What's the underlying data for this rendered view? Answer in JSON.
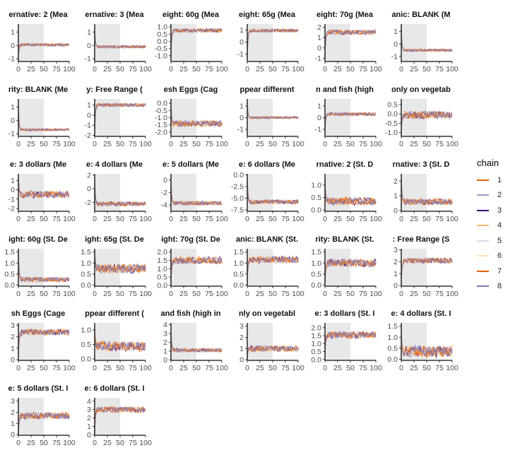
{
  "chart_data": {
    "type": "line",
    "layout": "facet-grid",
    "x_ticks": [
      0,
      25,
      50,
      75,
      100
    ],
    "x_tick_labels": [
      "0",
      "25",
      "50",
      "75",
      "100"
    ],
    "xlim": [
      0,
      100
    ],
    "burnin_shade": [
      0,
      50
    ],
    "legend": {
      "title": "chain",
      "position": "right",
      "entries": [
        "1",
        "2",
        "3",
        "4",
        "5",
        "6",
        "7",
        "8"
      ]
    },
    "series_colors": [
      "#e66101",
      "#9e9ac8",
      "#3f007d",
      "#fdb863",
      "#dadaeb",
      "#fee0b6",
      "#e66101",
      "#8073ac"
    ],
    "panels": [
      {
        "title": "ernative: 2 (Mea",
        "ylim": [
          -1.2,
          1.6
        ],
        "y_ticks": [
          -1,
          0,
          1
        ],
        "y_tick_labels": [
          "-1",
          "0",
          "1"
        ],
        "level": 0.05,
        "noise": 0.12,
        "start": -1.0
      },
      {
        "title": "ernative: 3 (Mea",
        "ylim": [
          -1.2,
          1.6
        ],
        "y_ticks": [
          -1,
          0,
          1
        ],
        "y_tick_labels": [
          "-1",
          "0",
          "1"
        ],
        "level": -0.1,
        "noise": 0.12,
        "start": 1.4
      },
      {
        "title": "eight: 60g (Mea",
        "ylim": [
          -1.4,
          1.2
        ],
        "y_ticks": [
          -1.0,
          -0.5,
          0.0,
          0.5,
          1.0
        ],
        "y_tick_labels": [
          "-1.0",
          "-0.5",
          "0.0",
          "0.5",
          "1.0"
        ],
        "level": 0.75,
        "noise": 0.15,
        "start": -1.2
      },
      {
        "title": "eight: 65g (Mea",
        "ylim": [
          -1.6,
          1.5
        ],
        "y_ticks": [
          -1,
          0,
          1
        ],
        "y_tick_labels": [
          "-1",
          "0",
          "1"
        ],
        "level": 0.95,
        "noise": 0.15,
        "start": -1.3
      },
      {
        "title": "eight: 70g (Mea",
        "ylim": [
          -1.3,
          2.3
        ],
        "y_ticks": [
          -1,
          0,
          1,
          2
        ],
        "y_tick_labels": [
          "-1",
          "0",
          "1",
          "2"
        ],
        "level": 1.5,
        "noise": 0.25,
        "start": -1.0
      },
      {
        "title": "anic: BLANK (M",
        "ylim": [
          -1.4,
          1.6
        ],
        "y_ticks": [
          -1,
          0,
          1
        ],
        "y_tick_labels": [
          "-1",
          "0",
          "1"
        ],
        "level": -0.5,
        "noise": 0.12,
        "start": 1.4
      },
      {
        "title": "rity: BLANK (Me",
        "ylim": [
          -1.2,
          1.6
        ],
        "y_ticks": [
          -1,
          0,
          1
        ],
        "y_tick_labels": [
          "-1",
          "0",
          "1"
        ],
        "level": -0.7,
        "noise": 0.1,
        "start": 1.3
      },
      {
        "title": "y: Free Range (",
        "ylim": [
          -2.1,
          1.6
        ],
        "y_ticks": [
          -2,
          -1,
          0,
          1
        ],
        "y_tick_labels": [
          "-2",
          "-1",
          "0",
          "1"
        ],
        "level": 1.0,
        "noise": 0.18,
        "start": -2.0
      },
      {
        "title": "esh Eggs (Cag",
        "ylim": [
          -2.3,
          0.3
        ],
        "y_ticks": [
          -2.0,
          -1.5,
          -1.0,
          -0.5,
          0.0
        ],
        "y_tick_labels": [
          "-2.0",
          "-1.5",
          "-1.0",
          "-0.5",
          "0.0"
        ],
        "level": -1.4,
        "noise": 0.25,
        "start": 0.1
      },
      {
        "title": "ppear different",
        "ylim": [
          -1.6,
          1.6
        ],
        "y_ticks": [
          -1,
          0,
          1
        ],
        "y_tick_labels": [
          "-1",
          "0",
          "1"
        ],
        "level": 0.0,
        "noise": 0.12,
        "start": 1.4
      },
      {
        "title": "n and fish (high",
        "ylim": [
          -1.6,
          1.6
        ],
        "y_ticks": [
          -1,
          0,
          1
        ],
        "y_tick_labels": [
          "-1",
          "0",
          "1"
        ],
        "level": 0.3,
        "noise": 0.15,
        "start": -1.3
      },
      {
        "title": "only on vegetab",
        "ylim": [
          -1.2,
          0.8
        ],
        "y_ticks": [
          -1.0,
          -0.5,
          0.0,
          0.5
        ],
        "y_tick_labels": [
          "-1.0",
          "-0.5",
          "0.0",
          "0.5"
        ],
        "level": -0.05,
        "noise": 0.25,
        "start": -1.0
      },
      {
        "title": "e: 3 dollars (Me",
        "ylim": [
          -2.3,
          1.7
        ],
        "y_ticks": [
          -2,
          -1,
          0,
          1
        ],
        "y_tick_labels": [
          "-2",
          "-1",
          "0",
          "1"
        ],
        "level": -0.5,
        "noise": 0.45,
        "start": 1.5
      },
      {
        "title": "e: 4 dollars (Me",
        "ylim": [
          -3.3,
          2.2
        ],
        "y_ticks": [
          -2,
          0,
          2
        ],
        "y_tick_labels": [
          "-2",
          "0",
          "2"
        ],
        "level": -2.2,
        "noise": 0.35,
        "start": 1.8
      },
      {
        "title": "e: 5 dollars (Me",
        "ylim": [
          -5.0,
          1.0
        ],
        "y_ticks": [
          -4,
          -2,
          0
        ],
        "y_tick_labels": [
          "-4",
          "-2",
          "0"
        ],
        "level": -3.7,
        "noise": 0.35,
        "start": 0.5
      },
      {
        "title": "e: 6 dollars (Me",
        "ylim": [
          -7.8,
          0.2
        ],
        "y_ticks": [
          -7.5,
          -5.0,
          -2.5,
          0.0
        ],
        "y_tick_labels": [
          "-7.5",
          "-5.0",
          "-2.5",
          "0.0"
        ],
        "level": -5.8,
        "noise": 0.5,
        "start": -0.5
      },
      {
        "title": "rnative: 2 (St. D",
        "ylim": [
          -0.05,
          1.45
        ],
        "y_ticks": [
          0.0,
          0.5,
          1.0
        ],
        "y_tick_labels": [
          "0.0",
          "0.5",
          "1.0"
        ],
        "level": 0.35,
        "noise": 0.18,
        "start": 1.3
      },
      {
        "title": "rnative: 3 (St. D",
        "ylim": [
          -0.05,
          2.5
        ],
        "y_ticks": [
          0,
          1,
          2
        ],
        "y_tick_labels": [
          "0",
          "1",
          "2"
        ],
        "level": 0.6,
        "noise": 0.25,
        "start": 2.3
      },
      {
        "title": "ight: 60g (St. De",
        "ylim": [
          -0.05,
          1.65
        ],
        "y_ticks": [
          0.0,
          0.5,
          1.0,
          1.5
        ],
        "y_tick_labels": [
          "0.0",
          "0.5",
          "1.0",
          "1.5"
        ],
        "level": 0.25,
        "noise": 0.12,
        "start": 1.6
      },
      {
        "title": "ight: 65g (St. De",
        "ylim": [
          -0.05,
          1.65
        ],
        "y_ticks": [
          0.0,
          0.5,
          1.0,
          1.5
        ],
        "y_tick_labels": [
          "0.0",
          "0.5",
          "1.0",
          "1.5"
        ],
        "level": 0.75,
        "noise": 0.25,
        "start": 1.5
      },
      {
        "title": "ight: 70g (St. De",
        "ylim": [
          -0.05,
          2.2
        ],
        "y_ticks": [
          0.0,
          0.5,
          1.0,
          1.5,
          2.0
        ],
        "y_tick_labels": [
          "0.0",
          "0.5",
          "1.0",
          "1.5",
          "2.0"
        ],
        "level": 1.5,
        "noise": 0.25,
        "start": 0.1
      },
      {
        "title": "anic: BLANK (St.",
        "ylim": [
          -0.05,
          1.65
        ],
        "y_ticks": [
          0.0,
          0.5,
          1.0,
          1.5
        ],
        "y_tick_labels": [
          "0.0",
          "0.5",
          "1.0",
          "1.5"
        ],
        "level": 1.15,
        "noise": 0.18,
        "start": 0.1
      },
      {
        "title": "rity: BLANK (St.",
        "ylim": [
          -0.05,
          1.65
        ],
        "y_ticks": [
          0.0,
          0.5,
          1.0,
          1.5
        ],
        "y_tick_labels": [
          "0.0",
          "0.5",
          "1.0",
          "1.5"
        ],
        "level": 1.0,
        "noise": 0.2,
        "start": 0.1
      },
      {
        "title": ": Free Range (S",
        "ylim": [
          -0.05,
          3.1
        ],
        "y_ticks": [
          0,
          1,
          2,
          3
        ],
        "y_tick_labels": [
          "0",
          "1",
          "2",
          "3"
        ],
        "level": 2.1,
        "noise": 0.25,
        "start": 0.1
      },
      {
        "title": "sh Eggs (Cage",
        "ylim": [
          -0.05,
          3.2
        ],
        "y_ticks": [
          0,
          1,
          2,
          3
        ],
        "y_tick_labels": [
          "0",
          "1",
          "2",
          "3"
        ],
        "level": 2.4,
        "noise": 0.3,
        "start": 0.1
      },
      {
        "title": "ppear different (",
        "ylim": [
          -0.05,
          1.25
        ],
        "y_ticks": [
          0.0,
          0.5,
          1.0
        ],
        "y_tick_labels": [
          "0.0",
          "0.5",
          "1.0"
        ],
        "level": 0.45,
        "noise": 0.2,
        "start": 1.1
      },
      {
        "title": "and fish (high in",
        "ylim": [
          -0.05,
          4.2
        ],
        "y_ticks": [
          0,
          1,
          2,
          3,
          4
        ],
        "y_tick_labels": [
          "0",
          "1",
          "2",
          "3",
          "4"
        ],
        "level": 1.1,
        "noise": 0.25,
        "start": 3.8
      },
      {
        "title": "nly on vegetabl",
        "ylim": [
          -0.05,
          3.3
        ],
        "y_ticks": [
          0,
          1,
          2,
          3
        ],
        "y_tick_labels": [
          "0",
          "1",
          "2",
          "3"
        ],
        "level": 1.0,
        "noise": 0.3,
        "start": 0.1
      },
      {
        "title": "e: 3 dollars (St. I",
        "ylim": [
          -0.05,
          2.3
        ],
        "y_ticks": [
          0.0,
          0.5,
          1.0,
          1.5,
          2.0
        ],
        "y_tick_labels": [
          "0.0",
          "0.5",
          "1.0",
          "1.5",
          "2.0"
        ],
        "level": 1.55,
        "noise": 0.25,
        "start": 0.1
      },
      {
        "title": "e: 4 dollars (St. I",
        "ylim": [
          -0.05,
          1.65
        ],
        "y_ticks": [
          0.0,
          0.5,
          1.0,
          1.5
        ],
        "y_tick_labels": [
          "0.0",
          "0.5",
          "1.0",
          "1.5"
        ],
        "level": 0.35,
        "noise": 0.3,
        "start": 1.5
      },
      {
        "title": "e: 5 dollars (St. I",
        "ylim": [
          -0.05,
          3.3
        ],
        "y_ticks": [
          0,
          1,
          2,
          3
        ],
        "y_tick_labels": [
          "0",
          "1",
          "2",
          "3"
        ],
        "level": 1.7,
        "noise": 0.35,
        "start": 0.1
      },
      {
        "title": "e: 6 dollars (St. I",
        "ylim": [
          -0.05,
          4.4
        ],
        "y_ticks": [
          0,
          1,
          2,
          3,
          4
        ],
        "y_tick_labels": [
          "0",
          "1",
          "2",
          "3",
          "4"
        ],
        "level": 3.0,
        "noise": 0.4,
        "start": 0.1
      }
    ]
  }
}
